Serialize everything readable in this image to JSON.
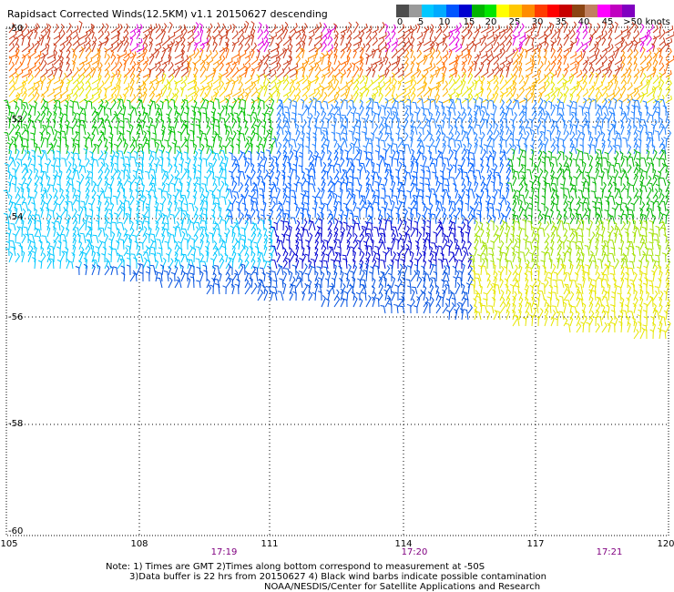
{
  "title": "Rapidsact Corrected Winds(12.5KM) v1.1 20150627 descending",
  "colorbar": {
    "colors": [
      "#4d4d4d",
      "#9a9a9a",
      "#00c8ff",
      "#00aaff",
      "#0055ff",
      "#0000d0",
      "#00b400",
      "#00e600",
      "#ffff00",
      "#ffc800",
      "#ff8c00",
      "#ff3c00",
      "#ff0000",
      "#c80000",
      "#8b4513",
      "#c08060",
      "#ff00ff",
      "#c000c0",
      "#8000c0"
    ],
    "labels": [
      "0",
      "5",
      "10",
      "15",
      "20",
      "25",
      "30",
      "35",
      "40",
      "45",
      ">50 knots"
    ]
  },
  "y_axis": {
    "labels": [
      "-50",
      "-52",
      "-54",
      "-56",
      "-58",
      "-60"
    ]
  },
  "x_axis": {
    "labels": [
      "105",
      "108",
      "111",
      "114",
      "117",
      "120"
    ]
  },
  "times": [
    "17:19",
    "17:20",
    "17:21"
  ],
  "notes": {
    "line1": "Note: 1) Times are GMT 2)Times along bottom correspond to measurement at -50S",
    "line2": "3)Data buffer is 22 hrs from 20150627 4) Black wind barbs indicate possible contamination",
    "line3": "NOAA/NESDIS/Center for Satellite Applications and Research"
  }
}
